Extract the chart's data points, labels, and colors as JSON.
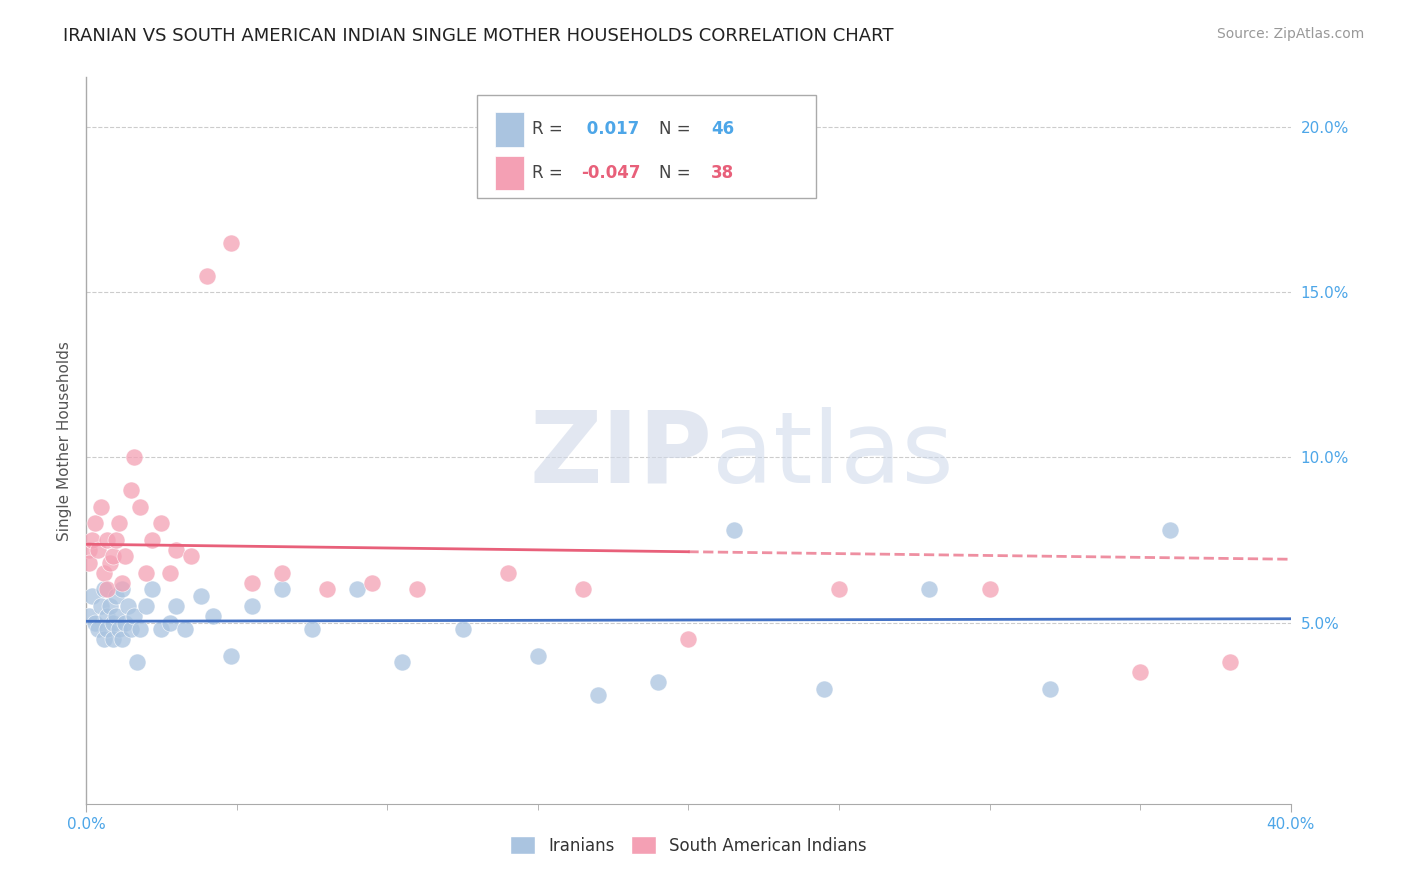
{
  "title": "IRANIAN VS SOUTH AMERICAN INDIAN SINGLE MOTHER HOUSEHOLDS CORRELATION CHART",
  "source": "Source: ZipAtlas.com",
  "ylabel": "Single Mother Households",
  "xmin": 0.0,
  "xmax": 0.4,
  "ymin": -0.005,
  "ymax": 0.215,
  "yticks": [
    0.05,
    0.1,
    0.15,
    0.2
  ],
  "ytick_labels": [
    "5.0%",
    "10.0%",
    "15.0%",
    "20.0%"
  ],
  "xtick_minor": [
    0.05,
    0.1,
    0.15,
    0.2,
    0.25,
    0.3,
    0.35
  ],
  "iranian_R": 0.017,
  "iranian_N": 46,
  "sa_indian_R": -0.047,
  "sa_indian_N": 38,
  "iranian_color": "#aac4e0",
  "sa_indian_color": "#f4a0b4",
  "iranian_line_color": "#4472c4",
  "sa_indian_line_color": "#e8607a",
  "watermark_zip": "ZIP",
  "watermark_atlas": "atlas",
  "background_color": "#ffffff",
  "grid_color": "#cccccc",
  "iranian_scatter_x": [
    0.001,
    0.002,
    0.003,
    0.004,
    0.005,
    0.006,
    0.006,
    0.007,
    0.007,
    0.008,
    0.009,
    0.009,
    0.01,
    0.01,
    0.011,
    0.012,
    0.012,
    0.013,
    0.014,
    0.015,
    0.016,
    0.017,
    0.018,
    0.02,
    0.022,
    0.025,
    0.028,
    0.03,
    0.033,
    0.038,
    0.042,
    0.048,
    0.055,
    0.065,
    0.075,
    0.09,
    0.105,
    0.125,
    0.15,
    0.17,
    0.19,
    0.215,
    0.245,
    0.28,
    0.32,
    0.36
  ],
  "iranian_scatter_y": [
    0.052,
    0.058,
    0.05,
    0.048,
    0.055,
    0.06,
    0.045,
    0.052,
    0.048,
    0.055,
    0.05,
    0.045,
    0.058,
    0.052,
    0.048,
    0.06,
    0.045,
    0.05,
    0.055,
    0.048,
    0.052,
    0.038,
    0.048,
    0.055,
    0.06,
    0.048,
    0.05,
    0.055,
    0.048,
    0.058,
    0.052,
    0.04,
    0.055,
    0.06,
    0.048,
    0.06,
    0.038,
    0.048,
    0.04,
    0.028,
    0.032,
    0.078,
    0.03,
    0.06,
    0.03,
    0.078
  ],
  "sa_indian_scatter_x": [
    0.001,
    0.001,
    0.002,
    0.003,
    0.004,
    0.005,
    0.006,
    0.007,
    0.007,
    0.008,
    0.009,
    0.01,
    0.011,
    0.012,
    0.013,
    0.015,
    0.016,
    0.018,
    0.02,
    0.022,
    0.025,
    0.028,
    0.03,
    0.035,
    0.04,
    0.048,
    0.055,
    0.065,
    0.08,
    0.095,
    0.11,
    0.14,
    0.165,
    0.2,
    0.25,
    0.3,
    0.35,
    0.38
  ],
  "sa_indian_scatter_y": [
    0.072,
    0.068,
    0.075,
    0.08,
    0.072,
    0.085,
    0.065,
    0.06,
    0.075,
    0.068,
    0.07,
    0.075,
    0.08,
    0.062,
    0.07,
    0.09,
    0.1,
    0.085,
    0.065,
    0.075,
    0.08,
    0.065,
    0.072,
    0.07,
    0.155,
    0.165,
    0.062,
    0.065,
    0.06,
    0.062,
    0.06,
    0.065,
    0.06,
    0.045,
    0.06,
    0.06,
    0.035,
    0.038
  ],
  "legend_R_color_blue": "#4da6e8",
  "legend_R_color_pink": "#e8607a",
  "title_fontsize": 13,
  "tick_label_fontsize": 11,
  "ylabel_fontsize": 11
}
